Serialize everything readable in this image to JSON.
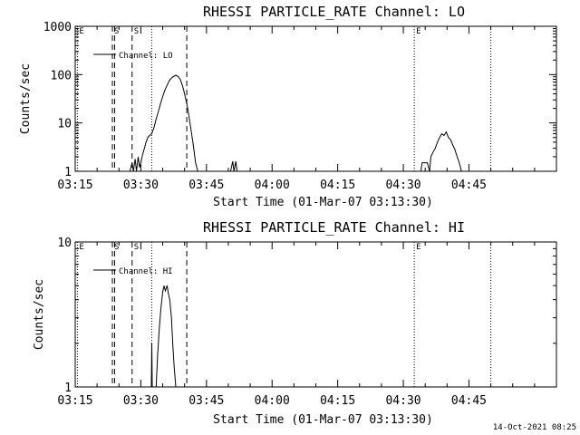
{
  "footer": {
    "timestamp": "14-Oct-2021 08:25"
  },
  "chart_data": [
    {
      "type": "line",
      "title": "RHESSI PARTICLE_RATE Channel: LO",
      "xlabel": "Start Time (01-Mar-07 03:13:30)",
      "ylabel": "Counts/sec",
      "yscale": "log",
      "ylim": [
        1,
        1000
      ],
      "xlim": [
        195,
        305
      ],
      "x_unit": "minutes after 00:00 UT (01-Mar-07)",
      "x_ticks": [
        {
          "v": 195,
          "label": "03:15"
        },
        {
          "v": 210,
          "label": "03:30"
        },
        {
          "v": 225,
          "label": "03:45"
        },
        {
          "v": 240,
          "label": "04:00"
        },
        {
          "v": 255,
          "label": "04:15"
        },
        {
          "v": 270,
          "label": "04:30"
        },
        {
          "v": 285,
          "label": "04:45"
        }
      ],
      "y_ticks": [
        {
          "v": 1,
          "label": "1"
        },
        {
          "v": 10,
          "label": "10"
        },
        {
          "v": 100,
          "label": "100"
        },
        {
          "v": 1000,
          "label": "1000"
        }
      ],
      "legend": {
        "placement": "top-left",
        "label": "Channel: LO"
      },
      "markers": [
        {
          "x": 195.5,
          "style": "dotted",
          "label": "E"
        },
        {
          "x": 203.5,
          "style": "dashed",
          "label": "S"
        },
        {
          "x": 204.0,
          "style": "dashed",
          "label": ""
        },
        {
          "x": 208.0,
          "style": "dashed",
          "label": "S"
        },
        {
          "x": 212.5,
          "style": "dotted",
          "label": ""
        },
        {
          "x": 220.5,
          "style": "dashed",
          "label": ""
        },
        {
          "x": 272.5,
          "style": "dotted",
          "label": "E"
        },
        {
          "x": 290.0,
          "style": "dotted",
          "label": ""
        }
      ],
      "series": [
        {
          "segments": [
            [
              [
                195,
                1
              ],
              [
                205,
                1
              ],
              [
                205.5,
                1
              ]
            ],
            [
              [
                207.5,
                1
              ],
              [
                208,
                1.5
              ],
              [
                208.3,
                1
              ],
              [
                208.7,
                1.8
              ],
              [
                209,
                1
              ],
              [
                209.4,
                2
              ],
              [
                209.7,
                1.2
              ],
              [
                210,
                1.5
              ],
              [
                210.4,
                2.2
              ],
              [
                210.8,
                3
              ],
              [
                211.2,
                4
              ],
              [
                211.6,
                5
              ],
              [
                212,
                5.5
              ],
              [
                212.5,
                6
              ],
              [
                213,
                8
              ],
              [
                213.5,
                12
              ],
              [
                214,
                17
              ],
              [
                214.5,
                25
              ],
              [
                215,
                35
              ],
              [
                215.5,
                48
              ],
              [
                216,
                60
              ],
              [
                216.5,
                75
              ],
              [
                217,
                85
              ],
              [
                217.5,
                92
              ],
              [
                218,
                97
              ],
              [
                218.5,
                92
              ],
              [
                219,
                80
              ],
              [
                219.5,
                60
              ],
              [
                220,
                40
              ],
              [
                220.5,
                25
              ],
              [
                221,
                14
              ],
              [
                221.5,
                7
              ],
              [
                222,
                3.5
              ],
              [
                222.5,
                1.5
              ],
              [
                223,
                1
              ]
            ],
            [
              [
                230.5,
                1
              ],
              [
                231,
                1.6
              ],
              [
                231.3,
                1
              ],
              [
                231.7,
                1.6
              ],
              [
                232,
                1
              ]
            ],
            [
              [
                274,
                1
              ],
              [
                274.3,
                1.5
              ],
              [
                275.5,
                1.5
              ],
              [
                276,
                1
              ],
              [
                276.3,
                2
              ],
              [
                276.8,
                2.5
              ],
              [
                277.3,
                3
              ],
              [
                277.8,
                4
              ],
              [
                278.3,
                5
              ],
              [
                278.8,
                6
              ],
              [
                279.3,
                5.5
              ],
              [
                279.8,
                6.5
              ],
              [
                280.3,
                5
              ],
              [
                280.8,
                4.5
              ],
              [
                281.3,
                3.5
              ],
              [
                281.8,
                2.8
              ],
              [
                282.3,
                2
              ],
              [
                282.8,
                1.5
              ],
              [
                283.3,
                1
              ]
            ]
          ]
        }
      ]
    },
    {
      "type": "line",
      "title": "RHESSI PARTICLE_RATE Channel: HI",
      "xlabel": "Start Time (01-Mar-07 03:13:30)",
      "ylabel": "Counts/sec",
      "yscale": "log",
      "ylim": [
        1,
        10
      ],
      "xlim": [
        195,
        305
      ],
      "x_unit": "minutes after 00:00 UT (01-Mar-07)",
      "x_ticks": [
        {
          "v": 195,
          "label": "03:15"
        },
        {
          "v": 210,
          "label": "03:30"
        },
        {
          "v": 225,
          "label": "03:45"
        },
        {
          "v": 240,
          "label": "04:00"
        },
        {
          "v": 255,
          "label": "04:15"
        },
        {
          "v": 270,
          "label": "04:30"
        },
        {
          "v": 285,
          "label": "04:45"
        }
      ],
      "y_ticks": [
        {
          "v": 1,
          "label": "1"
        },
        {
          "v": 10,
          "label": "10"
        }
      ],
      "legend": {
        "placement": "top-left",
        "label": "Channel: HI"
      },
      "markers": [
        {
          "x": 195.5,
          "style": "dotted",
          "label": "E"
        },
        {
          "x": 203.5,
          "style": "dashed",
          "label": "S"
        },
        {
          "x": 204.0,
          "style": "dashed",
          "label": ""
        },
        {
          "x": 208.0,
          "style": "dashed",
          "label": "S"
        },
        {
          "x": 212.5,
          "style": "dotted",
          "label": ""
        },
        {
          "x": 220.5,
          "style": "dashed",
          "label": ""
        },
        {
          "x": 272.5,
          "style": "dotted",
          "label": "E"
        },
        {
          "x": 290.0,
          "style": "dotted",
          "label": ""
        }
      ],
      "series": [
        {
          "segments": [
            [
              [
                212.4,
                1
              ],
              [
                212.5,
                2
              ],
              [
                212.6,
                1
              ]
            ],
            [
              [
                213.5,
                1
              ],
              [
                213.8,
                1.6
              ],
              [
                214.2,
                2.5
              ],
              [
                214.6,
                3.5
              ],
              [
                215,
                4.5
              ],
              [
                215.3,
                5
              ],
              [
                215.6,
                4.6
              ],
              [
                216,
                5
              ],
              [
                216.3,
                4.4
              ],
              [
                216.6,
                4
              ],
              [
                217,
                3
              ],
              [
                217.3,
                2
              ],
              [
                217.6,
                1.4
              ],
              [
                218,
                1
              ]
            ]
          ]
        }
      ]
    }
  ]
}
